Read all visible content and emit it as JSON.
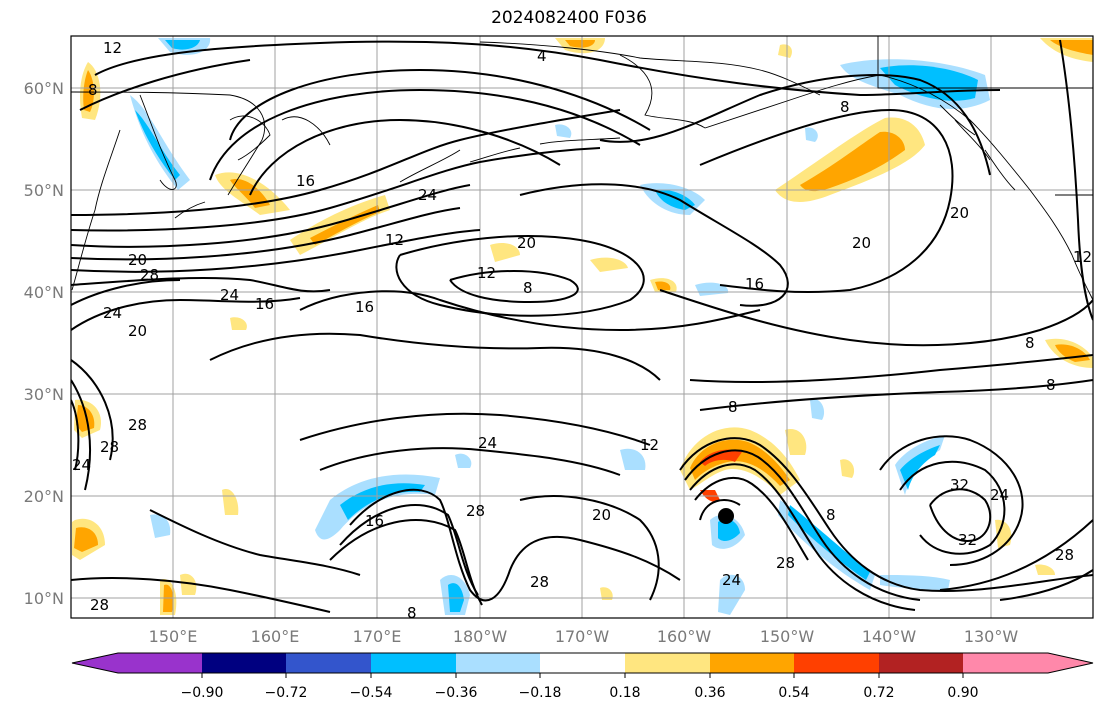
{
  "title": "2024082400 F036",
  "map": {
    "lat_labels": [
      "60°N",
      "50°N",
      "40°N",
      "30°N",
      "20°N",
      "10°N"
    ],
    "lon_labels": [
      "150°E",
      "160°E",
      "170°E",
      "180°W",
      "170°W",
      "160°W",
      "150°W",
      "140°W",
      "130°W"
    ],
    "contour_labels": [
      "12",
      "4",
      "8",
      "16",
      "24",
      "20",
      "12",
      "20",
      "28",
      "24",
      "16",
      "16",
      "8",
      "12",
      "16",
      "20",
      "8",
      "20",
      "12",
      "8",
      "8",
      "8",
      "24",
      "12",
      "28",
      "24",
      "28",
      "20",
      "24",
      "16",
      "28",
      "28",
      "32",
      "24",
      "32",
      "28",
      "20",
      "24",
      "8",
      "28",
      "8",
      "28"
    ]
  },
  "colorbar": {
    "tick_labels": [
      "−0.90",
      "−0.72",
      "−0.54",
      "−0.36",
      "−0.18",
      "0.18",
      "0.36",
      "0.54",
      "0.72",
      "0.90"
    ],
    "colors": [
      "#9933cc",
      "#000080",
      "#3355cc",
      "#00bfff",
      "#aadfff",
      "#ffffff",
      "#ffe680",
      "#ffa500",
      "#ff4000",
      "#b22222",
      "#ff88aa"
    ]
  }
}
